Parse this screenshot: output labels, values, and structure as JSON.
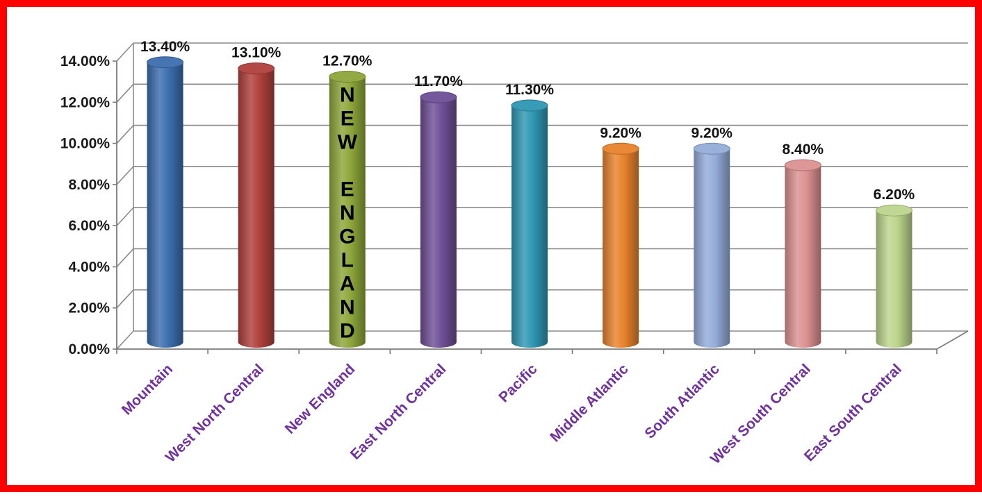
{
  "chart_data": {
    "type": "bar",
    "style": "3d-cylinder",
    "categories": [
      "Mountain",
      "West North Central",
      "New England",
      "East North Central",
      "Pacific",
      "Middle Atlantic",
      "South Atlantic",
      "West South Central",
      "East South Central"
    ],
    "values": [
      13.4,
      13.1,
      12.7,
      11.7,
      11.3,
      9.2,
      9.2,
      8.4,
      6.2
    ],
    "data_labels": [
      "13.40%",
      "13.10%",
      "12.70%",
      "11.70%",
      "11.30%",
      "9.20%",
      "9.20%",
      "8.40%",
      "6.20%"
    ],
    "colors": [
      "#3c6eae",
      "#b0403c",
      "#8da63a",
      "#6e4f96",
      "#2f97b3",
      "#e8822c",
      "#94acd9",
      "#dc9191",
      "#bcd58c"
    ],
    "ylim": [
      0,
      14
    ],
    "yticks": [
      "0.00%",
      "2.00%",
      "4.00%",
      "6.00%",
      "8.00%",
      "10.00%",
      "12.00%",
      "14.00%"
    ],
    "grid": true,
    "legend": "none",
    "category_label_color": "#7030a0",
    "annotation": {
      "category": "New England",
      "lines": [
        "N",
        "E",
        "W",
        "",
        "E",
        "N",
        "G",
        "L",
        "A",
        "N",
        "D"
      ]
    }
  }
}
